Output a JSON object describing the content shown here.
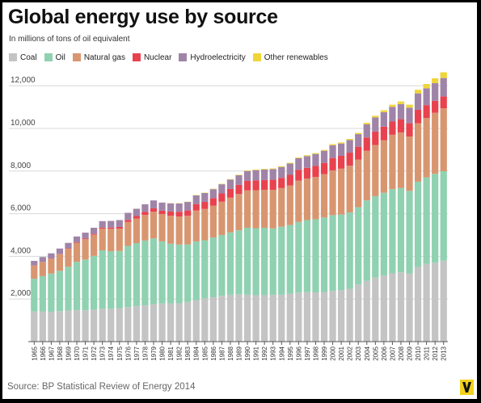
{
  "title": "Global energy use by source",
  "subtitle": "In millions of tons of oil equivalent",
  "source": "Source: BP Statistical Review of Energy 2014",
  "logo": {
    "letter": "V",
    "icon": "vox-logo-icon",
    "background": "#f2d21b",
    "color": "#111111"
  },
  "legend": [
    {
      "label": "Coal",
      "color": "#c4c4c4"
    },
    {
      "label": "Oil",
      "color": "#8fd1b1"
    },
    {
      "label": "Natural gas",
      "color": "#d89670"
    },
    {
      "label": "Nuclear",
      "color": "#e8424f"
    },
    {
      "label": "Hydroelectricity",
      "color": "#a084a8"
    },
    {
      "label": "Other renewables",
      "color": "#f0d53a"
    }
  ],
  "chart_data": {
    "type": "bar",
    "stacked": true,
    "title": "Global energy use by source",
    "subtitle": "In millions of tons of oil equivalent",
    "ylim": [
      0,
      12800
    ],
    "yticks": [
      2000,
      4000,
      6000,
      8000,
      10000,
      12000
    ],
    "ytick_labels": [
      "2,000",
      "4,000",
      "6,000",
      "8,000",
      "10,000",
      "12,000"
    ],
    "grid": "horizontal",
    "legend_position": "top",
    "categories": [
      1965,
      1966,
      1967,
      1968,
      1969,
      1970,
      1971,
      1972,
      1973,
      1974,
      1975,
      1976,
      1977,
      1978,
      1979,
      1980,
      1981,
      1982,
      1983,
      1984,
      1985,
      1986,
      1987,
      1988,
      1989,
      1990,
      1991,
      1992,
      1993,
      1994,
      1995,
      1996,
      1997,
      1998,
      1999,
      2000,
      2001,
      2002,
      2003,
      2004,
      2005,
      2006,
      2007,
      2008,
      2009,
      2010,
      2011,
      2012,
      2013
    ],
    "xtick_labels": [
      "1965",
      "1966",
      "1967",
      "1968",
      "1969",
      "1970",
      "1971",
      "1972",
      "1973",
      "1974",
      "1975",
      "1976",
      "1977",
      "1978",
      "1979",
      "1980",
      "1981",
      "1982",
      "1983",
      "1984",
      "1985",
      "1986",
      "1987",
      "1988",
      "1989",
      "1990",
      "1991",
      "1992",
      "1993",
      "1994",
      "1995",
      "1996",
      "1997",
      "1998",
      "1999",
      "2000",
      "2001",
      "2002",
      "2003",
      "2004",
      "2005",
      "2006",
      "2007",
      "2008",
      "2009",
      "2010",
      "2011",
      "2012",
      "2013"
    ],
    "series": [
      {
        "name": "Coal",
        "color": "#c4c4c4",
        "values": [
          1410,
          1420,
          1400,
          1430,
          1460,
          1480,
          1470,
          1500,
          1540,
          1540,
          1570,
          1620,
          1670,
          1700,
          1760,
          1790,
          1800,
          1800,
          1860,
          1950,
          2030,
          2080,
          2150,
          2200,
          2220,
          2200,
          2180,
          2180,
          2200,
          2200,
          2250,
          2300,
          2320,
          2310,
          2330,
          2380,
          2410,
          2480,
          2680,
          2850,
          3000,
          3100,
          3200,
          3250,
          3200,
          3500,
          3650,
          3700,
          3800
        ]
      },
      {
        "name": "Oil",
        "color": "#8fd1b1",
        "values": [
          1540,
          1650,
          1790,
          1890,
          2050,
          2260,
          2380,
          2520,
          2740,
          2700,
          2680,
          2870,
          2950,
          3040,
          3080,
          2910,
          2790,
          2750,
          2700,
          2750,
          2720,
          2800,
          2850,
          2920,
          3000,
          3140,
          3140,
          3160,
          3110,
          3190,
          3220,
          3310,
          3380,
          3430,
          3490,
          3550,
          3550,
          3580,
          3620,
          3770,
          3820,
          3880,
          3950,
          3950,
          3870,
          4000,
          4050,
          4170,
          4190
        ]
      },
      {
        "name": "Natural gas",
        "color": "#d89670",
        "values": [
          620,
          660,
          700,
          780,
          840,
          900,
          950,
          990,
          1020,
          1050,
          1050,
          1120,
          1150,
          1200,
          1250,
          1280,
          1310,
          1320,
          1340,
          1450,
          1470,
          1490,
          1560,
          1630,
          1700,
          1750,
          1780,
          1780,
          1810,
          1810,
          1850,
          1940,
          1950,
          1980,
          2030,
          2100,
          2150,
          2190,
          2240,
          2330,
          2400,
          2460,
          2550,
          2610,
          2550,
          2740,
          2790,
          2860,
          2950
        ]
      },
      {
        "name": "Nuclear",
        "color": "#e8424f",
        "values": [
          5,
          8,
          10,
          15,
          20,
          20,
          30,
          40,
          50,
          60,
          80,
          100,
          120,
          150,
          160,
          160,
          200,
          220,
          250,
          300,
          330,
          360,
          390,
          410,
          430,
          450,
          460,
          460,
          470,
          480,
          500,
          510,
          500,
          520,
          530,
          580,
          600,
          610,
          600,
          620,
          630,
          640,
          620,
          620,
          620,
          630,
          600,
          560,
          560
        ]
      },
      {
        "name": "Hydroelectricity",
        "color": "#a084a8",
        "values": [
          210,
          230,
          240,
          250,
          260,
          270,
          280,
          290,
          300,
          310,
          320,
          330,
          340,
          350,
          370,
          380,
          385,
          390,
          400,
          410,
          420,
          420,
          430,
          440,
          450,
          460,
          480,
          490,
          500,
          510,
          530,
          540,
          550,
          560,
          570,
          600,
          580,
          590,
          590,
          620,
          660,
          680,
          690,
          710,
          730,
          770,
          790,
          830,
          860
        ]
      },
      {
        "name": "Other renewables",
        "color": "#f0d53a",
        "values": [
          0,
          0,
          0,
          0,
          0,
          0,
          0,
          0,
          0,
          0,
          0,
          0,
          0,
          0,
          0,
          0,
          10,
          10,
          10,
          15,
          15,
          20,
          20,
          20,
          25,
          25,
          30,
          30,
          30,
          35,
          35,
          35,
          40,
          40,
          40,
          50,
          50,
          55,
          60,
          70,
          80,
          90,
          100,
          120,
          140,
          170,
          200,
          230,
          270
        ]
      }
    ]
  }
}
